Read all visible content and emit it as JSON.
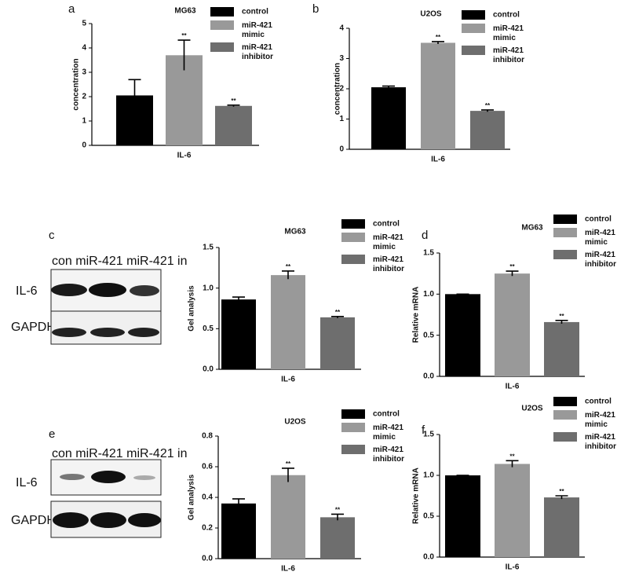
{
  "chart_data": [
    {
      "type": "bar",
      "panel": "a",
      "title": "MG63",
      "ylabel": "concentration",
      "categories": [
        "IL-6"
      ],
      "ylim": [
        0,
        5
      ],
      "yticks": [
        0,
        1,
        2,
        3,
        4,
        5
      ],
      "series": [
        {
          "name": "control",
          "color": "#000000",
          "values": [
            2.05
          ],
          "errors": [
            0.65
          ]
        },
        {
          "name": "miR-421 mimic",
          "color": "#999999",
          "values": [
            3.7
          ],
          "errors": [
            0.62
          ],
          "annotation": "**"
        },
        {
          "name": "miR-421 inhibitor",
          "color": "#6e6e6e",
          "values": [
            1.62
          ],
          "errors": [
            0.03
          ],
          "annotation": "**"
        }
      ]
    },
    {
      "type": "bar",
      "panel": "b",
      "title": "U2OS",
      "ylabel": "concentration",
      "categories": [
        "IL-6"
      ],
      "ylim": [
        0,
        4
      ],
      "yticks": [
        0,
        1,
        2,
        3,
        4
      ],
      "series": [
        {
          "name": "control",
          "color": "#000000",
          "values": [
            2.05
          ],
          "errors": [
            0.04
          ]
        },
        {
          "name": "miR-421 mimic",
          "color": "#999999",
          "values": [
            3.52
          ],
          "errors": [
            0.04
          ],
          "annotation": "**"
        },
        {
          "name": "miR-421 inhibitor",
          "color": "#6e6e6e",
          "values": [
            1.27
          ],
          "errors": [
            0.03
          ],
          "annotation": "**"
        }
      ]
    },
    {
      "type": "bar",
      "panel": "c",
      "title": "MG63",
      "ylabel": "Gel analysis",
      "categories": [
        "IL-6"
      ],
      "ylim": [
        0,
        1.5
      ],
      "yticks": [
        {
          "value": 0,
          "label": "0.0"
        },
        0.5,
        {
          "value": 1,
          "label": "1.0"
        },
        1.5
      ],
      "series": [
        {
          "name": "control",
          "color": "#000000",
          "values": [
            0.86
          ],
          "errors": [
            0.03
          ]
        },
        {
          "name": "miR-421 mimic",
          "color": "#999999",
          "values": [
            1.16
          ],
          "errors": [
            0.05
          ],
          "annotation": "**"
        },
        {
          "name": "miR-421 inhibitor",
          "color": "#6e6e6e",
          "values": [
            0.64
          ],
          "errors": [
            0.01
          ],
          "annotation": "**"
        }
      ]
    },
    {
      "type": "bar",
      "panel": "d",
      "title": "MG63",
      "ylabel": "Relative mRNA",
      "categories": [
        "IL-6"
      ],
      "ylim": [
        0,
        1.5
      ],
      "yticks": [
        {
          "value": 0,
          "label": "0.0"
        },
        0.5,
        {
          "value": 1,
          "label": "1.0"
        },
        1.5
      ],
      "series": [
        {
          "name": "control",
          "color": "#000000",
          "values": [
            1.0
          ],
          "errors": [
            0
          ]
        },
        {
          "name": "miR-421 mimic",
          "color": "#999999",
          "values": [
            1.25
          ],
          "errors": [
            0.03
          ],
          "annotation": "**"
        },
        {
          "name": "miR-421 inhibitor",
          "color": "#6e6e6e",
          "values": [
            0.66
          ],
          "errors": [
            0.02
          ],
          "annotation": "**"
        }
      ]
    },
    {
      "type": "bar",
      "panel": "e",
      "title": "U2OS",
      "ylabel": "Gel analysis",
      "categories": [
        "IL-6"
      ],
      "ylim": [
        0,
        0.8
      ],
      "yticks": [
        {
          "value": 0,
          "label": "0.0"
        },
        0.2,
        0.4,
        0.6,
        0.8
      ],
      "series": [
        {
          "name": "control",
          "color": "#000000",
          "values": [
            0.36
          ],
          "errors": [
            0.03
          ]
        },
        {
          "name": "miR-421 mimic",
          "color": "#999999",
          "values": [
            0.545
          ],
          "errors": [
            0.045
          ],
          "annotation": "**"
        },
        {
          "name": "miR-421 inhibitor",
          "color": "#6e6e6e",
          "values": [
            0.27
          ],
          "errors": [
            0.02
          ],
          "annotation": "**"
        }
      ]
    },
    {
      "type": "bar",
      "panel": "f",
      "title": "U2OS",
      "ylabel": "Relative mRNA",
      "categories": [
        "IL-6"
      ],
      "ylim": [
        0,
        1.5
      ],
      "yticks": [
        {
          "value": 0,
          "label": "0.0"
        },
        0.5,
        {
          "value": 1,
          "label": "1.0"
        },
        1.5
      ],
      "series": [
        {
          "name": "control",
          "color": "#000000",
          "values": [
            1.0
          ],
          "errors": [
            0
          ]
        },
        {
          "name": "miR-421 mimic",
          "color": "#999999",
          "values": [
            1.14
          ],
          "errors": [
            0.04
          ],
          "annotation": "**"
        },
        {
          "name": "miR-421 inhibitor",
          "color": "#6e6e6e",
          "values": [
            0.73
          ],
          "errors": [
            0.02
          ],
          "annotation": "**"
        }
      ]
    }
  ],
  "blots": [
    {
      "lanes": "con miR-421 miR-421 in",
      "rows": [
        "IL-6",
        "GAPDH"
      ]
    },
    {
      "lanes": "con miR-421 miR-421 in",
      "rows": [
        "IL-6",
        "GAPDH"
      ]
    }
  ]
}
